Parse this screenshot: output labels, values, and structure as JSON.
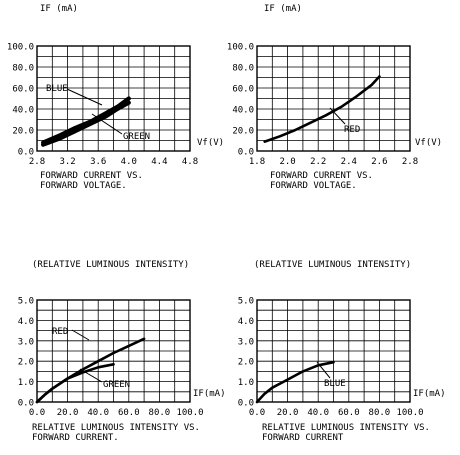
{
  "chart_data": [
    {
      "type": "line",
      "title": "",
      "ylabel": "IF (mA)",
      "xlabel": "Vf(V)",
      "caption": [
        "FORWARD CURRENT VS.",
        "FORWARD VOLTAGE."
      ],
      "xlim": [
        2.8,
        4.8
      ],
      "ylim": [
        0,
        100
      ],
      "x_ticks": [
        2.8,
        3.2,
        3.6,
        4.0,
        4.4,
        4.8
      ],
      "x_tick_labels": [
        "2.8",
        "3.2",
        "3.6",
        "4.0",
        "4.4",
        "4.8"
      ],
      "y_ticks": [
        0,
        20,
        40,
        60,
        80,
        100
      ],
      "y_tick_labels": [
        "0.0",
        "20.0",
        "40.0",
        "60.0",
        "80.0",
        "100.0"
      ],
      "grid": true,
      "series": [
        {
          "name": "BLUE",
          "thick": true,
          "x": [
            2.88,
            3.1,
            3.3,
            3.5,
            3.7,
            3.85,
            4.0
          ],
          "y": [
            8,
            15,
            22,
            28,
            36,
            42,
            50
          ]
        },
        {
          "name": "GREEN",
          "thick": true,
          "x": [
            2.88,
            3.1,
            3.3,
            3.5,
            3.7,
            3.85,
            4.0
          ],
          "y": [
            6,
            12,
            19,
            26,
            33,
            40,
            46
          ]
        }
      ]
    },
    {
      "type": "line",
      "title": "",
      "ylabel": "IF (mA)",
      "xlabel": "Vf(V)",
      "caption": [
        "FORWARD CURRENT VS.",
        "FORWARD VOLTAGE."
      ],
      "xlim": [
        1.8,
        2.8
      ],
      "ylim": [
        0,
        100
      ],
      "x_ticks": [
        1.8,
        2.0,
        2.2,
        2.4,
        2.6,
        2.8
      ],
      "x_tick_labels": [
        "1.8",
        "2.0",
        "2.2",
        "2.4",
        "2.6",
        "2.8"
      ],
      "y_ticks": [
        0,
        20,
        40,
        60,
        80,
        100
      ],
      "y_tick_labels": [
        "0.0",
        "20.0",
        "40.0",
        "60.0",
        "80.0",
        "100.0"
      ],
      "grid": true,
      "series": [
        {
          "name": "RED",
          "thick": false,
          "x": [
            1.85,
            1.95,
            2.05,
            2.15,
            2.25,
            2.35,
            2.45,
            2.55,
            2.6
          ],
          "y": [
            9,
            14,
            20,
            27,
            34,
            42,
            52,
            63,
            71
          ]
        }
      ]
    },
    {
      "type": "line",
      "title": "",
      "ylabel": "(RELATIVE LUMINOUS INTENSITY)",
      "xlabel": "IF(mA)",
      "caption": [
        "RELATIVE LUMINOUS INTENSITY VS.",
        "FORWARD CURRENT."
      ],
      "xlim": [
        0,
        100
      ],
      "ylim": [
        0,
        5
      ],
      "x_ticks": [
        0,
        20,
        40,
        60,
        80,
        100
      ],
      "x_tick_labels": [
        "0.0",
        "20.0",
        "40.0",
        "60.0",
        "80.0",
        "100.0"
      ],
      "y_ticks": [
        0,
        1,
        2,
        3,
        4,
        5
      ],
      "y_tick_labels": [
        "0.0",
        "1.0",
        "2.0",
        "3.0",
        "4.0",
        "5.0"
      ],
      "grid": true,
      "series": [
        {
          "name": "RED",
          "thick": false,
          "x": [
            0,
            5,
            10,
            20,
            30,
            40,
            50,
            60,
            70
          ],
          "y": [
            0,
            0.35,
            0.65,
            1.15,
            1.6,
            2.0,
            2.4,
            2.75,
            3.1
          ]
        },
        {
          "name": "GREEN",
          "thick": false,
          "x": [
            0,
            5,
            10,
            20,
            30,
            40,
            50
          ],
          "y": [
            0,
            0.35,
            0.65,
            1.15,
            1.45,
            1.7,
            1.85
          ]
        }
      ]
    },
    {
      "type": "line",
      "title": "",
      "ylabel": "(RELATIVE LUMINOUS INTENSITY)",
      "xlabel": "IF(mA)",
      "caption": [
        "RELATIVE LUMINOUS INTENSITY VS.",
        "FORWARD CURRENT"
      ],
      "xlim": [
        0,
        100
      ],
      "ylim": [
        0,
        5
      ],
      "x_ticks": [
        0,
        20,
        40,
        60,
        80,
        100
      ],
      "x_tick_labels": [
        "0.0",
        "20.0",
        "40.0",
        "60.0",
        "80.0",
        "100.0"
      ],
      "y_ticks": [
        0,
        1,
        2,
        3,
        4,
        5
      ],
      "y_tick_labels": [
        "0.0",
        "1.0",
        "2.0",
        "3.0",
        "4.0",
        "5.0"
      ],
      "grid": true,
      "series": [
        {
          "name": "BLUE",
          "thick": false,
          "x": [
            0,
            5,
            10,
            20,
            30,
            40,
            50
          ],
          "y": [
            0,
            0.4,
            0.7,
            1.1,
            1.5,
            1.8,
            1.95
          ]
        }
      ]
    }
  ]
}
